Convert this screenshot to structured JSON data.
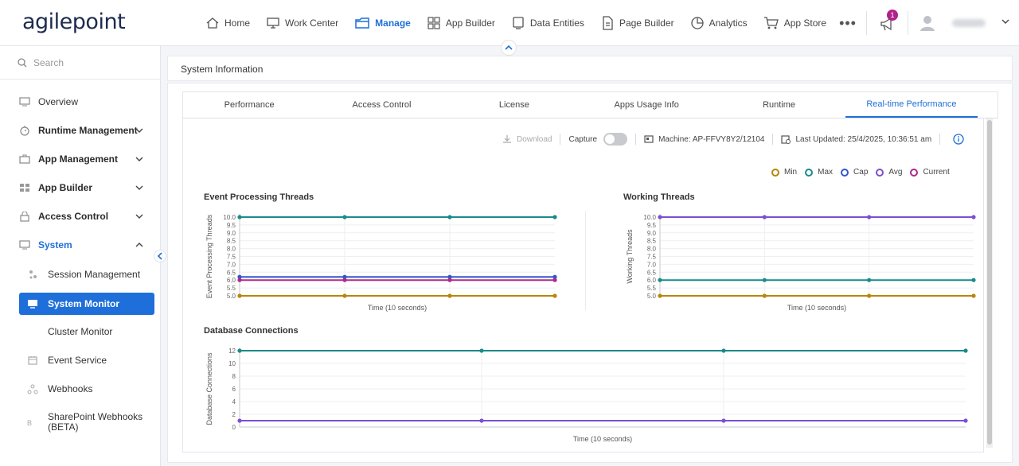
{
  "brand": {
    "logo": "agilepoint"
  },
  "nav": {
    "items": [
      {
        "label": "Home",
        "icon": "home-icon"
      },
      {
        "label": "Work Center",
        "icon": "monitor-icon"
      },
      {
        "label": "Manage",
        "icon": "folder-icon",
        "active": true
      },
      {
        "label": "App Builder",
        "icon": "grid-icon"
      },
      {
        "label": "Data Entities",
        "icon": "table-icon"
      },
      {
        "label": "Page Builder",
        "icon": "page-icon"
      },
      {
        "label": "Analytics",
        "icon": "pie-icon"
      },
      {
        "label": "App Store",
        "icon": "cart-icon"
      }
    ],
    "more": "•••",
    "notification_count": "1"
  },
  "sidebar": {
    "search_placeholder": "Search",
    "items": [
      {
        "label": "Overview",
        "icon": "overview-icon"
      },
      {
        "label": "Runtime Management",
        "icon": "runtime-icon"
      },
      {
        "label": "App Management",
        "icon": "briefcase-icon"
      },
      {
        "label": "App Builder",
        "icon": "grid-icon"
      },
      {
        "label": "Access Control",
        "icon": "lock-icon"
      },
      {
        "label": "System",
        "icon": "system-icon"
      },
      {
        "label": "Session Management",
        "icon": "session-icon"
      },
      {
        "label": "System Monitor",
        "icon": "monitor-icon"
      },
      {
        "label": "Cluster Monitor",
        "icon": ""
      },
      {
        "label": "Event Service",
        "icon": "calendar-icon"
      },
      {
        "label": "Webhooks",
        "icon": "webhook-icon"
      },
      {
        "label": "SharePoint Webhooks",
        "label2": "(BETA)",
        "icon": "beta-icon"
      }
    ]
  },
  "main": {
    "title": "System Information",
    "tabs": [
      "Performance",
      "Access Control",
      "License",
      "Apps Usage Info",
      "Runtime",
      "Real-time Performance"
    ],
    "toolbar": {
      "download": "Download",
      "capture": "Capture",
      "machine": "Machine: AP-FFVY8Y2/12104",
      "last_updated": "Last Updated: 25/4/2025, 10:36:51 am"
    },
    "legend": [
      {
        "label": "Min",
        "color": "#b8860b"
      },
      {
        "label": "Max",
        "color": "#1a8a8a"
      },
      {
        "label": "Cap",
        "color": "#3457c9"
      },
      {
        "label": "Avg",
        "color": "#7b4fd1"
      },
      {
        "label": "Current",
        "color": "#b0288f"
      }
    ]
  },
  "chart_data": [
    {
      "type": "line",
      "title": "Event Processing Threads",
      "xlabel": "Time (10 seconds)",
      "ylabel": "Event Processing Threads",
      "ylim": [
        5,
        10
      ],
      "yticks": [
        "10.0",
        "9.5",
        "9.0",
        "8.5",
        "8.0",
        "7.5",
        "7.0",
        "6.5",
        "6.0",
        "5.5",
        "5.0"
      ],
      "x": [
        0,
        1,
        2,
        3
      ],
      "series": [
        {
          "name": "Max",
          "color": "#1a8a8a",
          "values": [
            10,
            10,
            10,
            10
          ]
        },
        {
          "name": "Cap",
          "color": "#3457c9",
          "values": [
            6.2,
            6.2,
            6.2,
            6.2
          ]
        },
        {
          "name": "Current",
          "color": "#b0288f",
          "values": [
            6.0,
            6.0,
            6.0,
            6.0
          ]
        },
        {
          "name": "Min",
          "color": "#b8860b",
          "values": [
            5,
            5,
            5,
            5
          ]
        }
      ]
    },
    {
      "type": "line",
      "title": "Working Threads",
      "xlabel": "Time (10 seconds)",
      "ylabel": "Working Threads",
      "ylim": [
        5,
        10
      ],
      "yticks": [
        "10.0",
        "9.5",
        "9.0",
        "8.5",
        "8.0",
        "7.5",
        "7.0",
        "6.5",
        "6.0",
        "5.5",
        "5.0"
      ],
      "x": [
        0,
        1,
        2,
        3
      ],
      "series": [
        {
          "name": "Avg",
          "color": "#7b4fd1",
          "values": [
            10,
            10,
            10,
            10
          ]
        },
        {
          "name": "Max",
          "color": "#1a8a8a",
          "values": [
            6,
            6,
            6,
            6
          ]
        },
        {
          "name": "Min",
          "color": "#b8860b",
          "values": [
            5,
            5,
            5,
            5
          ]
        }
      ]
    },
    {
      "type": "line",
      "title": "Database Connections",
      "xlabel": "Time (10 seconds)",
      "ylabel": "Database Connections",
      "ylim": [
        0,
        12
      ],
      "yticks": [
        "12",
        "10",
        "8",
        "6",
        "4",
        "2",
        "0"
      ],
      "x": [
        0,
        1,
        2,
        3
      ],
      "series": [
        {
          "name": "Max",
          "color": "#1a8a8a",
          "values": [
            12,
            12,
            12,
            12
          ]
        },
        {
          "name": "Avg",
          "color": "#7b4fd1",
          "values": [
            1,
            1,
            1,
            1
          ]
        }
      ]
    }
  ]
}
